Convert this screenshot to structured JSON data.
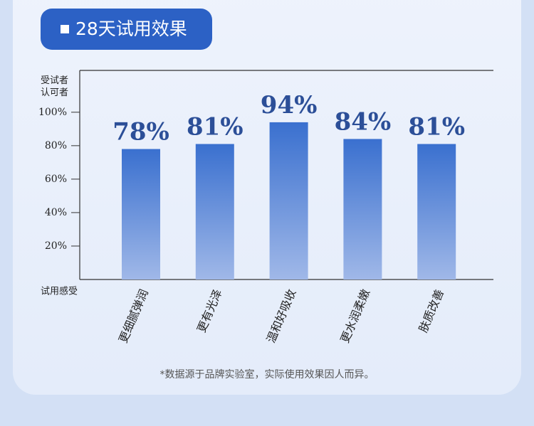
{
  "header": {
    "title": "28天试用效果"
  },
  "chart_data": {
    "type": "bar",
    "y_label": "受试者\n认可者",
    "x_label": "试用感受",
    "categories": [
      "更细腻弹润",
      "更有光泽",
      "温和好吸收",
      "更水润柔嫩",
      "肤质改善"
    ],
    "values": [
      78,
      81,
      94,
      84,
      81
    ],
    "value_labels": [
      "78%",
      "81%",
      "94%",
      "84%",
      "81%"
    ],
    "color": "#3a70cf",
    "ylim": [
      0,
      125
    ],
    "yticks": [
      {
        "value": 20,
        "label": "20%"
      },
      {
        "value": 40,
        "label": "40%"
      },
      {
        "value": 60,
        "label": "60%"
      },
      {
        "value": 80,
        "label": "80%"
      },
      {
        "value": 100,
        "label": "100%"
      }
    ],
    "grid": false
  },
  "footnote": "*数据源于品牌实验室，实际使用效果因人而异。"
}
